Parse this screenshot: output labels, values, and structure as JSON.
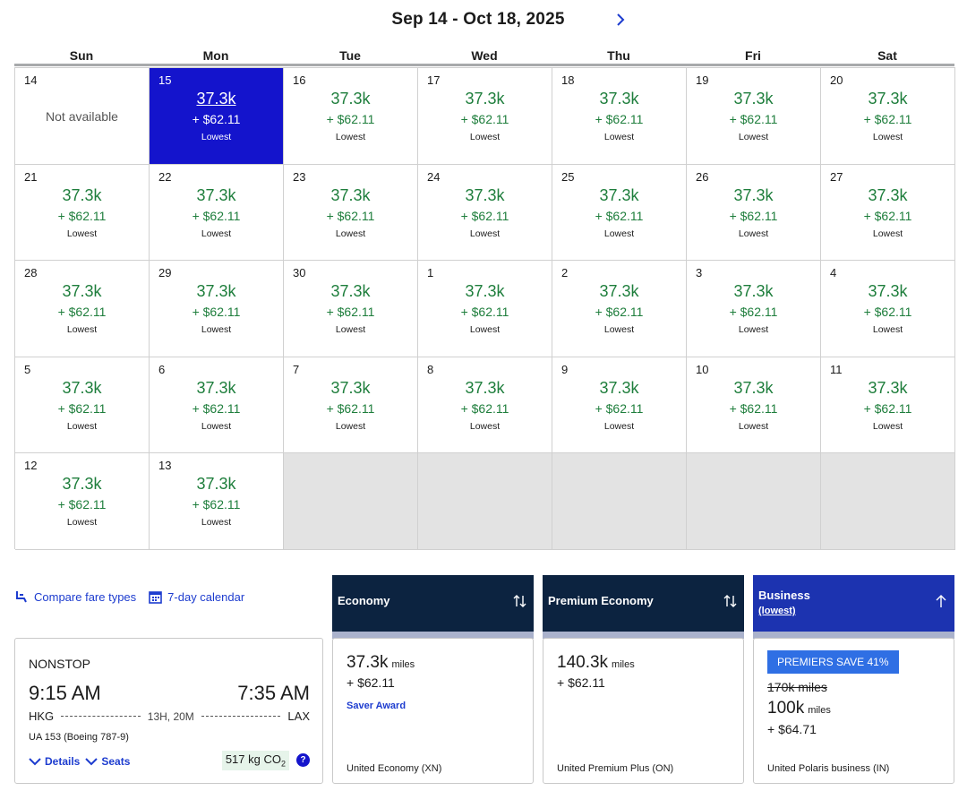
{
  "calendar": {
    "range": "Sep 14 - Oct 18, 2025",
    "weekdays": [
      "Sun",
      "Mon",
      "Tue",
      "Wed",
      "Thu",
      "Fri",
      "Sat"
    ],
    "selected_color": "#1414cc",
    "price_color": "#1e7e3c",
    "days": [
      {
        "day": "14",
        "status": "unavailable",
        "text": "Not available"
      },
      {
        "day": "15",
        "miles": "37.3k",
        "tax": "+ $62.11",
        "tag": "Lowest",
        "selected": true
      },
      {
        "day": "16",
        "miles": "37.3k",
        "tax": "+ $62.11",
        "tag": "Lowest"
      },
      {
        "day": "17",
        "miles": "37.3k",
        "tax": "+ $62.11",
        "tag": "Lowest"
      },
      {
        "day": "18",
        "miles": "37.3k",
        "tax": "+ $62.11",
        "tag": "Lowest"
      },
      {
        "day": "19",
        "miles": "37.3k",
        "tax": "+ $62.11",
        "tag": "Lowest"
      },
      {
        "day": "20",
        "miles": "37.3k",
        "tax": "+ $62.11",
        "tag": "Lowest"
      },
      {
        "day": "21",
        "miles": "37.3k",
        "tax": "+ $62.11",
        "tag": "Lowest"
      },
      {
        "day": "22",
        "miles": "37.3k",
        "tax": "+ $62.11",
        "tag": "Lowest"
      },
      {
        "day": "23",
        "miles": "37.3k",
        "tax": "+ $62.11",
        "tag": "Lowest"
      },
      {
        "day": "24",
        "miles": "37.3k",
        "tax": "+ $62.11",
        "tag": "Lowest"
      },
      {
        "day": "25",
        "miles": "37.3k",
        "tax": "+ $62.11",
        "tag": "Lowest"
      },
      {
        "day": "26",
        "miles": "37.3k",
        "tax": "+ $62.11",
        "tag": "Lowest"
      },
      {
        "day": "27",
        "miles": "37.3k",
        "tax": "+ $62.11",
        "tag": "Lowest"
      },
      {
        "day": "28",
        "miles": "37.3k",
        "tax": "+ $62.11",
        "tag": "Lowest"
      },
      {
        "day": "29",
        "miles": "37.3k",
        "tax": "+ $62.11",
        "tag": "Lowest"
      },
      {
        "day": "30",
        "miles": "37.3k",
        "tax": "+ $62.11",
        "tag": "Lowest"
      },
      {
        "day": "1",
        "miles": "37.3k",
        "tax": "+ $62.11",
        "tag": "Lowest"
      },
      {
        "day": "2",
        "miles": "37.3k",
        "tax": "+ $62.11",
        "tag": "Lowest"
      },
      {
        "day": "3",
        "miles": "37.3k",
        "tax": "+ $62.11",
        "tag": "Lowest"
      },
      {
        "day": "4",
        "miles": "37.3k",
        "tax": "+ $62.11",
        "tag": "Lowest"
      },
      {
        "day": "5",
        "miles": "37.3k",
        "tax": "+ $62.11",
        "tag": "Lowest"
      },
      {
        "day": "6",
        "miles": "37.3k",
        "tax": "+ $62.11",
        "tag": "Lowest"
      },
      {
        "day": "7",
        "miles": "37.3k",
        "tax": "+ $62.11",
        "tag": "Lowest"
      },
      {
        "day": "8",
        "miles": "37.3k",
        "tax": "+ $62.11",
        "tag": "Lowest"
      },
      {
        "day": "9",
        "miles": "37.3k",
        "tax": "+ $62.11",
        "tag": "Lowest"
      },
      {
        "day": "10",
        "miles": "37.3k",
        "tax": "+ $62.11",
        "tag": "Lowest"
      },
      {
        "day": "11",
        "miles": "37.3k",
        "tax": "+ $62.11",
        "tag": "Lowest"
      },
      {
        "day": "12",
        "miles": "37.3k",
        "tax": "+ $62.11",
        "tag": "Lowest"
      },
      {
        "day": "13",
        "miles": "37.3k",
        "tax": "+ $62.11",
        "tag": "Lowest"
      },
      {
        "status": "empty"
      },
      {
        "status": "empty"
      },
      {
        "status": "empty"
      },
      {
        "status": "empty"
      },
      {
        "status": "empty"
      }
    ]
  },
  "links": {
    "compare": "Compare fare types",
    "seven_day": "7-day calendar"
  },
  "flight": {
    "nonstop": "NONSTOP",
    "depart_time": "9:15 AM",
    "arrive_time": "7:35 AM",
    "origin": "HKG",
    "destination": "LAX",
    "duration": "13H, 20M",
    "aircraft": "UA 153 (Boeing 787-9)",
    "details_label": "Details",
    "seats_label": "Seats",
    "co2_value": "517 kg CO",
    "co2_sub": "2",
    "info_glyph": "?"
  },
  "fares": {
    "economy": {
      "header": "Economy",
      "miles": "37.3k",
      "unit": "miles",
      "tax": "+ $62.11",
      "award": "Saver Award",
      "fare_class": "United Economy (XN)"
    },
    "premium": {
      "header": "Premium Economy",
      "miles": "140.3k",
      "unit": "miles",
      "tax": "+ $62.11",
      "fare_class": "United Premium Plus (ON)"
    },
    "business": {
      "header": "Business",
      "sub": "(lowest)",
      "badge": "PREMIERS SAVE 41%",
      "old_miles": "170k miles",
      "miles": "100k",
      "unit": "miles",
      "tax": "+ $64.71",
      "fare_class": "United Polaris business (IN)"
    }
  }
}
